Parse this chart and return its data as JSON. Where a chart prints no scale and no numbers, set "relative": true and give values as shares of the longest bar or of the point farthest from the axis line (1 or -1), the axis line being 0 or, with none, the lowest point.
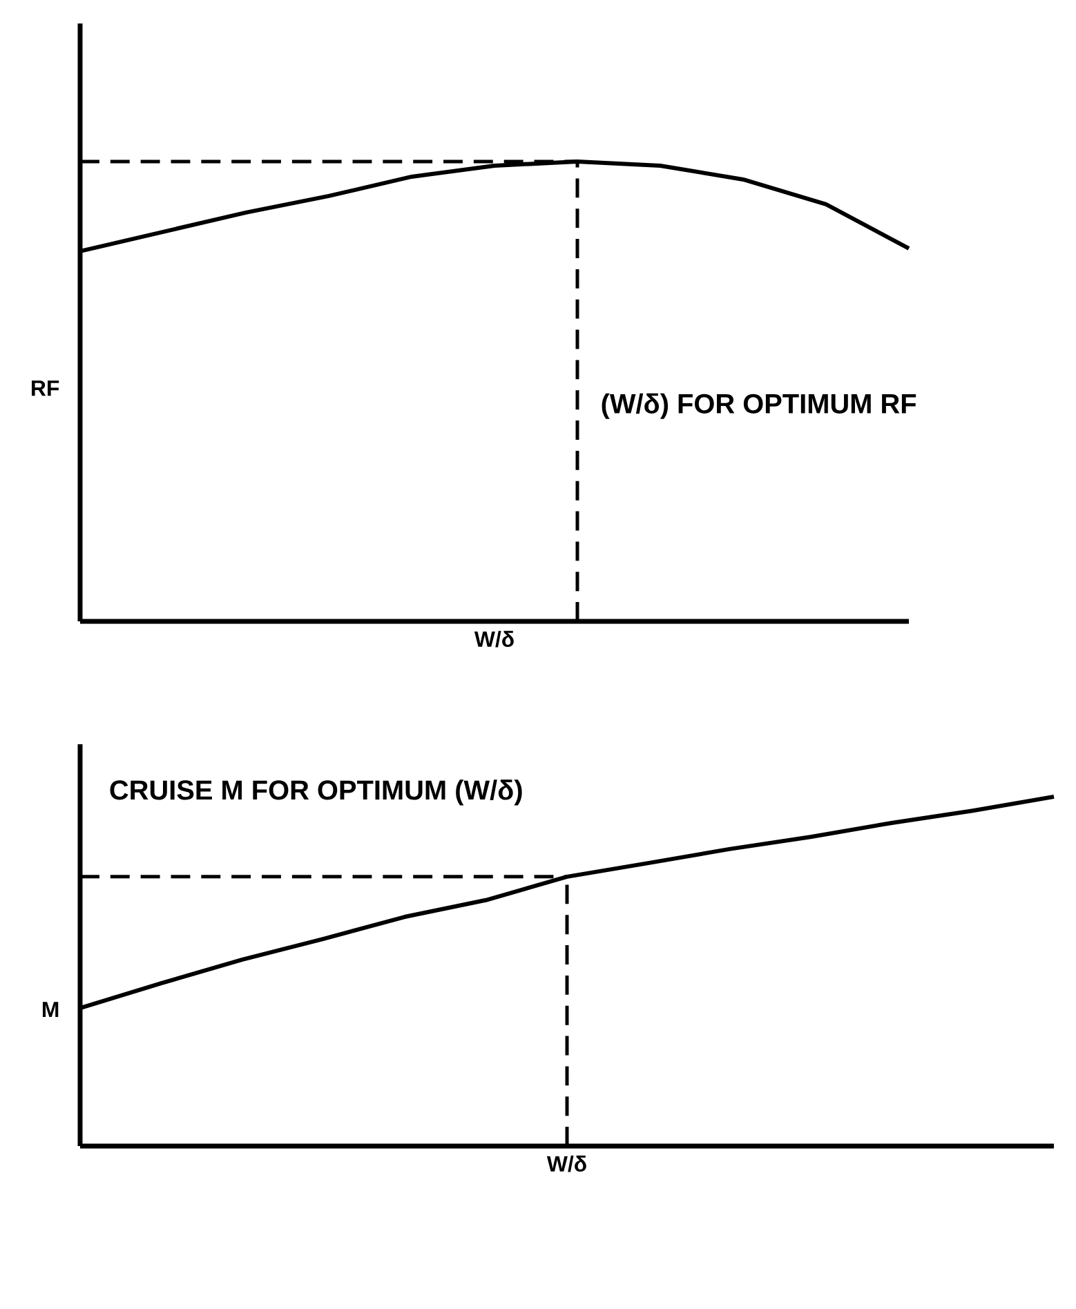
{
  "chart_data": [
    {
      "type": "line",
      "relative": true,
      "ylabel": "RF",
      "xlabel": "W/δ",
      "categories": [
        null,
        null,
        null,
        null,
        null,
        null,
        null,
        null,
        null,
        null,
        null
      ],
      "series": [
        {
          "color": "#000000",
          "values": [
            0.805,
            0.847,
            0.889,
            0.925,
            0.967,
            0.991,
            1.0,
            0.991,
            0.961,
            0.907,
            0.811
          ]
        }
      ],
      "ref_lines": [
        {
          "axis": "y",
          "value": 1.0,
          "line_style": "dashed"
        }
      ],
      "annotations": [
        "(W/δ) FOR OPTIMUM RF"
      ]
    },
    {
      "type": "line",
      "relative": true,
      "ylabel": "M",
      "xlabel": "W/δ",
      "categories": [
        null,
        null,
        null,
        null,
        null,
        null,
        null,
        null,
        null,
        null,
        null,
        null,
        null
      ],
      "series": [
        {
          "color": "#000000",
          "values": [
            0.395,
            0.466,
            0.534,
            0.593,
            0.656,
            0.704,
            0.771,
            0.81,
            0.85,
            0.885,
            0.925,
            0.96,
            1.0
          ]
        }
      ],
      "ref_lines": [
        {
          "axis": "y",
          "value": 0.771,
          "line_style": "dashed"
        }
      ],
      "annotations": [
        "CRUISE M FOR OPTIMUM (W/δ)"
      ]
    }
  ]
}
